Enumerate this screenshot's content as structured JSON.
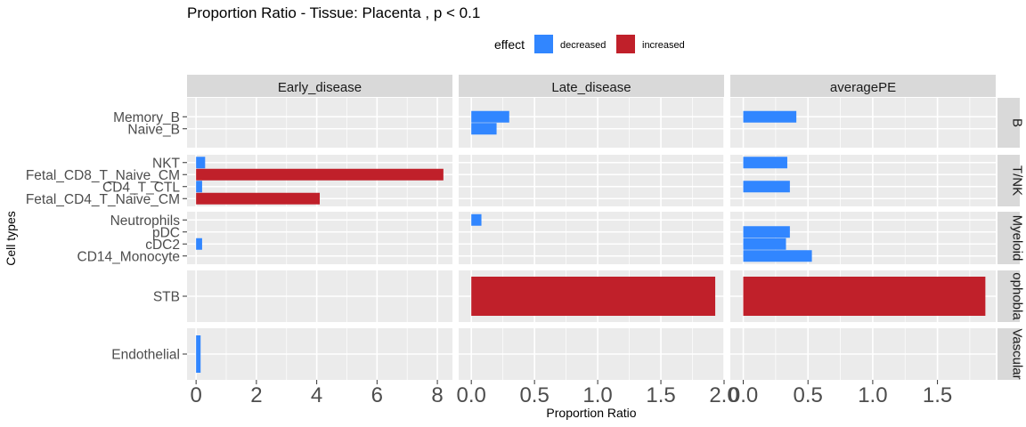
{
  "chart_data": {
    "type": "bar",
    "orientation": "horizontal",
    "title": "Proportion Ratio - Tissue: Placenta , p < 0.1",
    "xlabel": "Proportion Ratio",
    "ylabel": "Cell types",
    "legend": {
      "title": "effect",
      "position": "top",
      "entries": [
        {
          "name": "decreased",
          "color": "#3186FF"
        },
        {
          "name": "increased",
          "color": "#C0202A"
        }
      ]
    },
    "grid": true,
    "columns": [
      {
        "name": "Early_disease",
        "xlim": [
          -0.3,
          8.5
        ],
        "ticks": [
          0,
          2,
          4,
          6,
          8
        ],
        "tick_labels": [
          "0",
          "2",
          "4",
          "6",
          "8"
        ]
      },
      {
        "name": "Late_disease",
        "xlim": [
          -0.1,
          2.0
        ],
        "ticks": [
          0,
          0.5,
          1,
          1.5,
          2
        ],
        "tick_labels": [
          "0.0",
          "0.5",
          "1.0",
          "1.5",
          "2.0"
        ]
      },
      {
        "name": "averagePE",
        "xlim": [
          -0.1,
          1.95
        ],
        "ticks": [
          0,
          0.5,
          1,
          1.5
        ],
        "tick_labels": [
          "0.0",
          "0.5",
          "1.0",
          "1.5"
        ]
      }
    ],
    "rows": [
      {
        "group": "B",
        "strip_label": "B",
        "categories": [
          "Memory_B",
          "Naive_B"
        ]
      },
      {
        "group": "T/NK",
        "strip_label": "T/NK",
        "categories": [
          "NKT",
          "Fetal_CD8_T_Naive_CM",
          "CD4_T_CTL",
          "Fetal_CD4_T_Naive_CM"
        ]
      },
      {
        "group": "Myeloid",
        "strip_label": "Myeloid",
        "categories": [
          "Neutrophils",
          "pDC",
          "cDC2",
          "CD14_Monocyte"
        ]
      },
      {
        "group": "Trophoblast",
        "strip_label": "ophobla",
        "categories": [
          "STB"
        ]
      },
      {
        "group": "Vascular",
        "strip_label": "Vascular",
        "categories": [
          "Endothelial"
        ]
      }
    ],
    "bars": [
      {
        "column": "Early_disease",
        "category": "NKT",
        "value": 0.3,
        "effect": "decreased"
      },
      {
        "column": "Early_disease",
        "category": "Fetal_CD8_T_Naive_CM",
        "value": 8.2,
        "effect": "increased"
      },
      {
        "column": "Early_disease",
        "category": "CD4_T_CTL",
        "value": 0.2,
        "effect": "decreased"
      },
      {
        "column": "Early_disease",
        "category": "Fetal_CD4_T_Naive_CM",
        "value": 4.1,
        "effect": "increased"
      },
      {
        "column": "Early_disease",
        "category": "cDC2",
        "value": 0.2,
        "effect": "decreased"
      },
      {
        "column": "Early_disease",
        "category": "Endothelial",
        "value": 0.15,
        "effect": "decreased"
      },
      {
        "column": "Late_disease",
        "category": "Memory_B",
        "value": 0.3,
        "effect": "decreased"
      },
      {
        "column": "Late_disease",
        "category": "Naive_B",
        "value": 0.2,
        "effect": "decreased"
      },
      {
        "column": "Late_disease",
        "category": "Neutrophils",
        "value": 0.08,
        "effect": "decreased"
      },
      {
        "column": "Late_disease",
        "category": "STB",
        "value": 1.93,
        "effect": "increased"
      },
      {
        "column": "averagePE",
        "category": "Memory_B",
        "value": 0.41,
        "effect": "decreased"
      },
      {
        "column": "averagePE",
        "category": "NKT",
        "value": 0.34,
        "effect": "decreased"
      },
      {
        "column": "averagePE",
        "category": "CD4_T_CTL",
        "value": 0.36,
        "effect": "decreased"
      },
      {
        "column": "averagePE",
        "category": "pDC",
        "value": 0.36,
        "effect": "decreased"
      },
      {
        "column": "averagePE",
        "category": "cDC2",
        "value": 0.33,
        "effect": "decreased"
      },
      {
        "column": "averagePE",
        "category": "CD14_Monocyte",
        "value": 0.53,
        "effect": "decreased"
      },
      {
        "column": "averagePE",
        "category": "STB",
        "value": 1.87,
        "effect": "increased"
      }
    ]
  }
}
